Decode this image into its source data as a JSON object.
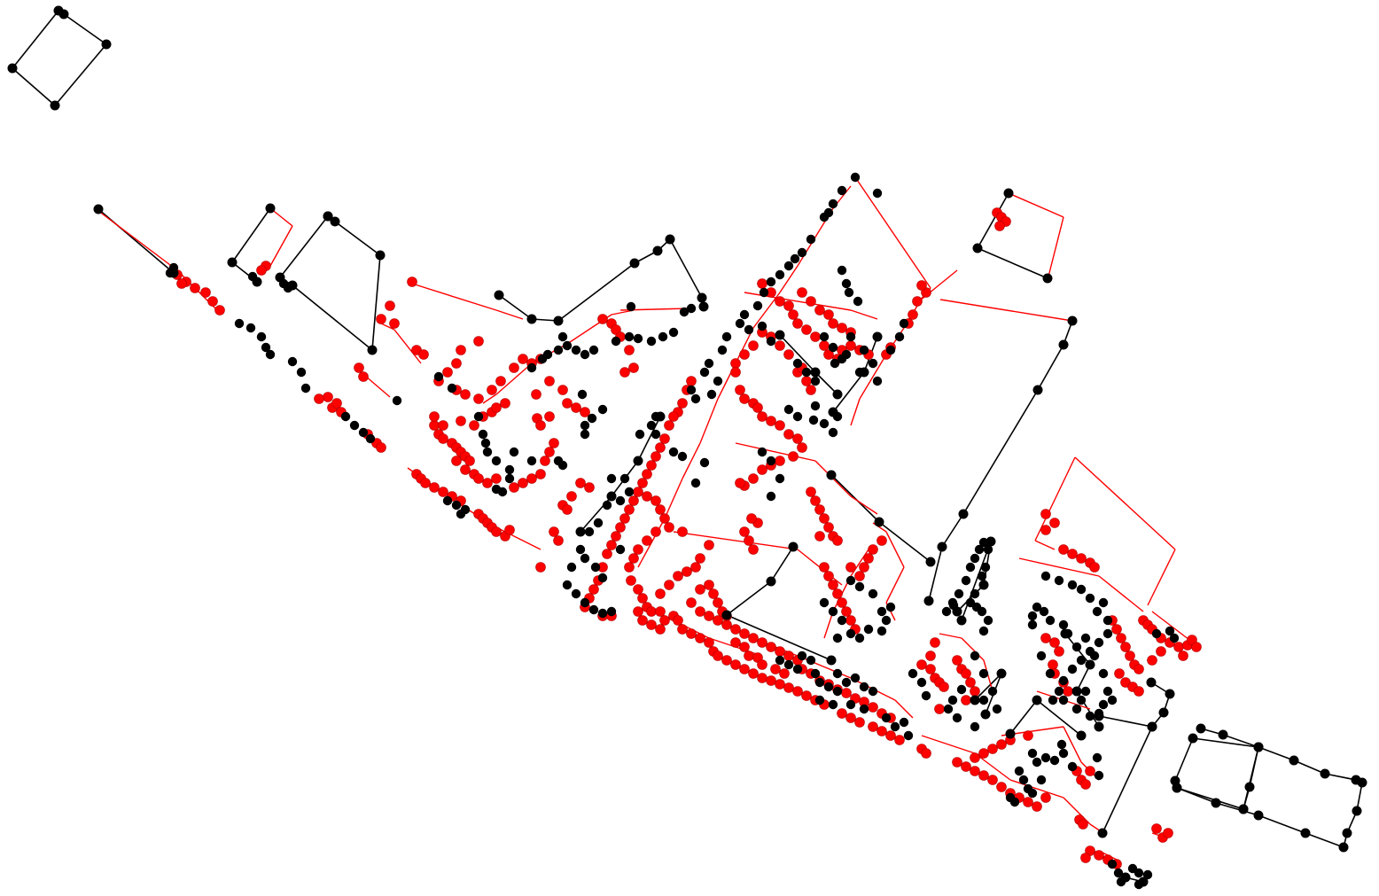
{
  "diagram": {
    "type": "node-link network overlay",
    "background": "#ffffff",
    "layers": [
      {
        "color": "#000000",
        "role": "black graph"
      },
      {
        "color": "#ff0000",
        "role": "red graph"
      }
    ]
  }
}
